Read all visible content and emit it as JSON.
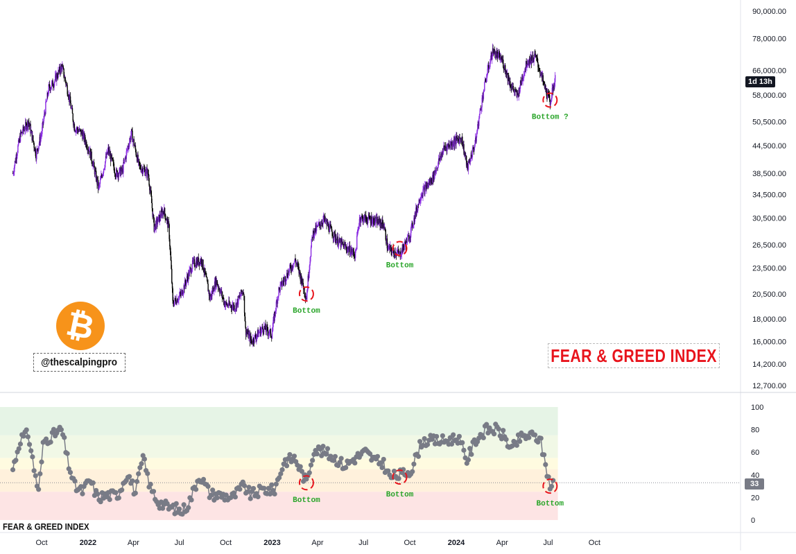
{
  "chart_data": [
    {
      "type": "candlestick",
      "series_name": "",
      "price_axis_labels": [
        "90,000.00",
        "78,000.00",
        "66,000.00",
        "58,000.00",
        "50,500.00",
        "44,500.00",
        "38,500.00",
        "34,500.00",
        "30,500.00",
        "26,500.00",
        "23,500.00",
        "20,500.00",
        "18,000.00",
        "16,000.00",
        "14,200.00",
        "12,700.00"
      ],
      "y_scale": "log",
      "ylim": [
        11800,
        98000
      ],
      "current_tag": "1d 13h",
      "close_trend": [
        [
          "2021-08-05",
          38500
        ],
        [
          "2021-08-20",
          47000
        ],
        [
          "2021-09-05",
          50500
        ],
        [
          "2021-09-20",
          42500
        ],
        [
          "2021-10-01",
          47500
        ],
        [
          "2021-10-15",
          60000
        ],
        [
          "2021-10-25",
          62000
        ],
        [
          "2021-11-10",
          67500
        ],
        [
          "2021-11-25",
          57000
        ],
        [
          "2021-12-05",
          49000
        ],
        [
          "2021-12-20",
          47500
        ],
        [
          "2022-01-05",
          43000
        ],
        [
          "2022-01-22",
          35500
        ],
        [
          "2022-02-10",
          43500
        ],
        [
          "2022-02-25",
          38500
        ],
        [
          "2022-03-10",
          39000
        ],
        [
          "2022-03-28",
          47500
        ],
        [
          "2022-04-12",
          40000
        ],
        [
          "2022-04-30",
          38500
        ],
        [
          "2022-05-12",
          29000
        ],
        [
          "2022-05-31",
          31800
        ],
        [
          "2022-06-10",
          29000
        ],
        [
          "2022-06-18",
          19500
        ],
        [
          "2022-07-05",
          20500
        ],
        [
          "2022-07-28",
          24000
        ],
        [
          "2022-08-14",
          24500
        ],
        [
          "2022-08-31",
          20000
        ],
        [
          "2022-09-12",
          22000
        ],
        [
          "2022-09-30",
          19400
        ],
        [
          "2022-10-20",
          19200
        ],
        [
          "2022-11-05",
          21000
        ],
        [
          "2022-11-09",
          17000
        ],
        [
          "2022-11-21",
          16000
        ],
        [
          "2022-12-15",
          17200
        ],
        [
          "2022-12-31",
          16600
        ],
        [
          "2023-01-14",
          20900
        ],
        [
          "2023-02-16",
          24500
        ],
        [
          "2023-03-10",
          20100
        ],
        [
          "2023-03-22",
          28000
        ],
        [
          "2023-04-13",
          30300
        ],
        [
          "2023-05-11",
          27000
        ],
        [
          "2023-06-15",
          25200
        ],
        [
          "2023-06-23",
          30500
        ],
        [
          "2023-07-15",
          30300
        ],
        [
          "2023-08-10",
          29500
        ],
        [
          "2023-08-18",
          26000
        ],
        [
          "2023-09-11",
          25200
        ],
        [
          "2023-10-01",
          27900
        ],
        [
          "2023-10-23",
          34500
        ],
        [
          "2023-11-15",
          37500
        ],
        [
          "2023-12-08",
          44000
        ],
        [
          "2024-01-11",
          46500
        ],
        [
          "2024-01-23",
          39500
        ],
        [
          "2024-02-08",
          45300
        ],
        [
          "2024-02-28",
          62500
        ],
        [
          "2024-03-13",
          73000
        ],
        [
          "2024-04-01",
          69500
        ],
        [
          "2024-04-17",
          61500
        ],
        [
          "2024-05-01",
          57500
        ],
        [
          "2024-05-20",
          69000
        ],
        [
          "2024-06-06",
          71000
        ],
        [
          "2024-06-24",
          60500
        ],
        [
          "2024-07-05",
          56000
        ],
        [
          "2024-07-15",
          63000
        ]
      ],
      "annotations": [
        {
          "date": "2023-03-10",
          "price": 20500,
          "label": "Bottom"
        },
        {
          "date": "2023-09-11",
          "price": 26000,
          "label": "Bottom"
        },
        {
          "date": "2024-07-05",
          "price": 56500,
          "label": "Bottom ?"
        }
      ],
      "grid": false
    },
    {
      "type": "line",
      "series_name": "FEAR & GREED INDEX",
      "ylim": [
        0,
        100
      ],
      "y_ticks": [
        "100",
        "80",
        "60",
        "40",
        "20",
        "0"
      ],
      "current_value": "33",
      "zones": [
        {
          "from": 0,
          "to": 25,
          "color": "#fde4e4"
        },
        {
          "from": 25,
          "to": 45,
          "color": "#fff1dc"
        },
        {
          "from": 45,
          "to": 55,
          "color": "#fffbe0"
        },
        {
          "from": 55,
          "to": 75,
          "color": "#f1f8e6"
        },
        {
          "from": 75,
          "to": 100,
          "color": "#e6f4e6"
        }
      ],
      "trend": [
        [
          "2021-08-05",
          45
        ],
        [
          "2021-08-20",
          72
        ],
        [
          "2021-09-05",
          76
        ],
        [
          "2021-09-15",
          48
        ],
        [
          "2021-09-25",
          25
        ],
        [
          "2021-10-05",
          70
        ],
        [
          "2021-10-20",
          74
        ],
        [
          "2021-11-10",
          80
        ],
        [
          "2021-11-22",
          52
        ],
        [
          "2021-12-05",
          30
        ],
        [
          "2021-12-20",
          25
        ],
        [
          "2022-01-05",
          35
        ],
        [
          "2022-01-20",
          20
        ],
        [
          "2022-02-10",
          22
        ],
        [
          "2022-03-01",
          22
        ],
        [
          "2022-03-20",
          42
        ],
        [
          "2022-04-05",
          24
        ],
        [
          "2022-04-20",
          55
        ],
        [
          "2022-05-05",
          28
        ],
        [
          "2022-05-20",
          16
        ],
        [
          "2022-06-10",
          11
        ],
        [
          "2022-06-25",
          10
        ],
        [
          "2022-07-05",
          7
        ],
        [
          "2022-07-20",
          15
        ],
        [
          "2022-08-10",
          40
        ],
        [
          "2022-08-31",
          23
        ],
        [
          "2022-09-20",
          22
        ],
        [
          "2022-10-15",
          20
        ],
        [
          "2022-11-05",
          30
        ],
        [
          "2022-11-20",
          22
        ],
        [
          "2022-12-15",
          27
        ],
        [
          "2023-01-05",
          26
        ],
        [
          "2023-01-25",
          52
        ],
        [
          "2023-02-15",
          55
        ],
        [
          "2023-03-10",
          33
        ],
        [
          "2023-03-25",
          63
        ],
        [
          "2023-04-15",
          60
        ],
        [
          "2023-05-05",
          55
        ],
        [
          "2023-05-25",
          48
        ],
        [
          "2023-06-15",
          55
        ],
        [
          "2023-07-05",
          60
        ],
        [
          "2023-07-25",
          52
        ],
        [
          "2023-08-10",
          50
        ],
        [
          "2023-08-22",
          38
        ],
        [
          "2023-09-15",
          40
        ],
        [
          "2023-10-05",
          45
        ],
        [
          "2023-10-25",
          70
        ],
        [
          "2023-11-15",
          70
        ],
        [
          "2023-12-10",
          70
        ],
        [
          "2024-01-05",
          73
        ],
        [
          "2024-01-22",
          53
        ],
        [
          "2024-02-10",
          72
        ],
        [
          "2024-03-01",
          80
        ],
        [
          "2024-03-20",
          80
        ],
        [
          "2024-04-05",
          74
        ],
        [
          "2024-04-20",
          62
        ],
        [
          "2024-05-05",
          72
        ],
        [
          "2024-05-25",
          75
        ],
        [
          "2024-06-15",
          72
        ],
        [
          "2024-06-28",
          45
        ],
        [
          "2024-07-05",
          30
        ],
        [
          "2024-07-13",
          33
        ]
      ],
      "annotations": [
        {
          "date": "2023-03-10",
          "value": 33,
          "label": "Bottom"
        },
        {
          "date": "2023-09-11",
          "value": 38,
          "label": "Bottom"
        },
        {
          "date": "2024-07-05",
          "value": 30,
          "label": "Bottom"
        }
      ],
      "grid": false
    }
  ],
  "time_axis": [
    {
      "label": "Oct",
      "date": "2021-10-01",
      "bold": false
    },
    {
      "label": "2022",
      "date": "2022-01-01",
      "bold": true
    },
    {
      "label": "Apr",
      "date": "2022-04-01",
      "bold": false
    },
    {
      "label": "Jul",
      "date": "2022-07-01",
      "bold": false
    },
    {
      "label": "Oct",
      "date": "2022-10-01",
      "bold": false
    },
    {
      "label": "2023",
      "date": "2023-01-01",
      "bold": true
    },
    {
      "label": "Apr",
      "date": "2023-04-01",
      "bold": false
    },
    {
      "label": "Jul",
      "date": "2023-07-01",
      "bold": false
    },
    {
      "label": "Oct",
      "date": "2023-10-01",
      "bold": false
    },
    {
      "label": "2024",
      "date": "2024-01-01",
      "bold": true
    },
    {
      "label": "Apr",
      "date": "2024-04-01",
      "bold": false
    },
    {
      "label": "Jul",
      "date": "2024-07-01",
      "bold": false
    },
    {
      "label": "Oct",
      "date": "2024-10-01",
      "bold": false
    }
  ],
  "overlay": {
    "handle": "@thescalpingpro",
    "title": "FEAR & GREED INDEX",
    "indicator_label": "FEAR & GREED INDEX",
    "logo_symbol": "₿"
  },
  "colors": {
    "bull": "#8a2be2",
    "bear": "#000000",
    "line": "#787b86",
    "annot_circle": "#e8141c",
    "annot_text": "#2aa52a",
    "title": "#e8141c",
    "btc_orange": "#f7931a"
  }
}
